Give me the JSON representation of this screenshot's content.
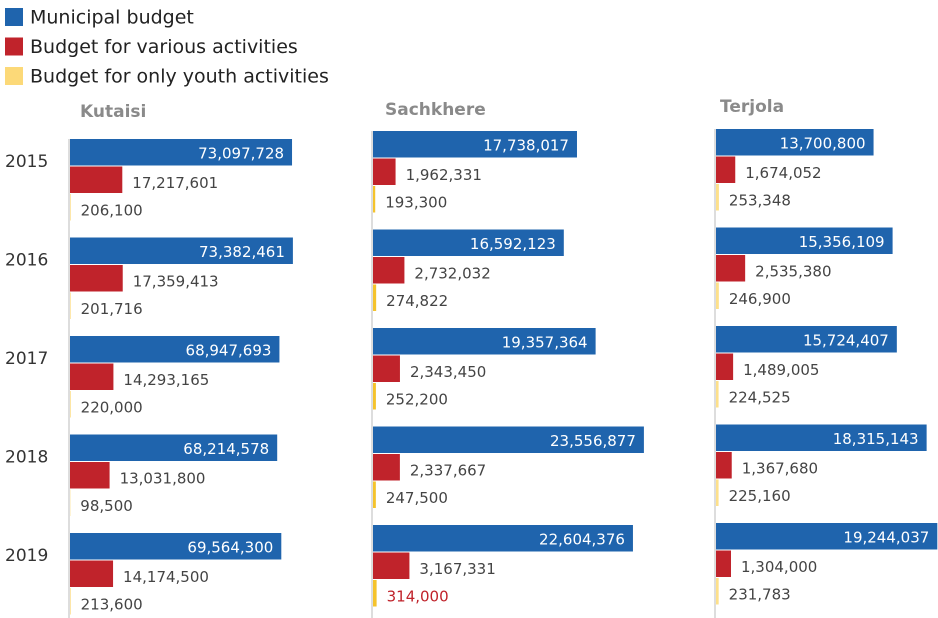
{
  "chart_data": [
    {
      "type": "hbar",
      "title": "Kutaisi",
      "categories": [
        "2015",
        "2016",
        "2017",
        "2018",
        "2019"
      ],
      "xlim": [
        0,
        80000000
      ],
      "series": [
        {
          "name": "Municipal budget",
          "color": "#1f64ad",
          "values": [
            73097728,
            73382461,
            68947693,
            68214578,
            69564300
          ],
          "value_labels": [
            "73,097,728",
            "73,382,461",
            "68,947,693",
            "68,214,578",
            "69,564,300"
          ]
        },
        {
          "name": "Budget for various activities",
          "color": "#c0232b",
          "values": [
            17217601,
            17359413,
            14293165,
            13031800,
            14174500
          ],
          "value_labels": [
            "17,217,601",
            "17,359,413",
            "14,293,165",
            "13,031,800",
            "14,174,500"
          ]
        },
        {
          "name": "Budget for only youth activities",
          "color": "#fcd978",
          "values": [
            206100,
            201716,
            220000,
            98500,
            213600
          ],
          "value_labels": [
            "206,100",
            "201,716",
            "220,000",
            "98,500",
            "213,600"
          ]
        }
      ]
    },
    {
      "type": "hbar",
      "title": "Sachkhere",
      "categories": [
        "2015",
        "2016",
        "2017",
        "2018",
        "2019"
      ],
      "xlim": [
        0,
        20000000
      ],
      "series": [
        {
          "name": "Municipal budget",
          "color": "#1f64ad",
          "values": [
            17738017,
            16592123,
            19357364,
            23556877,
            22604376
          ],
          "value_labels": [
            "17,738,017",
            "16,592,123",
            "19,357,364",
            "23,556,877",
            "22,604,376"
          ]
        },
        {
          "name": "Budget for various activities",
          "color": "#c0232b",
          "values": [
            1962331,
            2732032,
            2343450,
            2337667,
            3167331
          ],
          "value_labels": [
            "1,962,331",
            "2,732,032",
            "2,343,450",
            "2,337,667",
            "3,167,331"
          ]
        },
        {
          "name": "Budget for only youth activities",
          "color": "#f5c32c",
          "values": [
            193300,
            274822,
            252200,
            247500,
            314000
          ],
          "value_labels": [
            "193,300",
            "274,822",
            "252,200",
            "247,500",
            "314,000"
          ],
          "label_colors": [
            null,
            null,
            null,
            null,
            "#c0232b"
          ]
        }
      ]
    },
    {
      "type": "hbar",
      "title": "Terjola",
      "categories": [
        "2015",
        "2016",
        "2017",
        "2018",
        "2019"
      ],
      "xlim": [
        0,
        20000000
      ],
      "series": [
        {
          "name": "Municipal budget",
          "color": "#1f64ad",
          "values": [
            13700800,
            15356109,
            15724407,
            18315143,
            19244037
          ],
          "value_labels": [
            "13,700,800",
            "15,356,109",
            "15,724,407",
            "18,315,143",
            "19,244,037"
          ]
        },
        {
          "name": "Budget for various activities",
          "color": "#c0232b",
          "values": [
            1674052,
            2535380,
            1489005,
            1367680,
            1304000
          ],
          "value_labels": [
            "1,674,052",
            "2,535,380",
            "1,489,005",
            "1,367,680",
            "1,304,000"
          ]
        },
        {
          "name": "Budget for only youth activities",
          "color": "#fde08a",
          "values": [
            253348,
            246900,
            224525,
            225160,
            231783
          ],
          "value_labels": [
            "253,348",
            "246,900",
            "224,525",
            "225,160",
            "231,783"
          ]
        }
      ]
    }
  ]
}
